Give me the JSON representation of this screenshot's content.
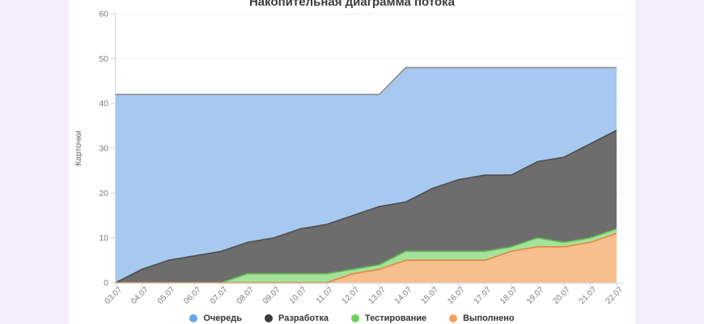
{
  "title": "Накопительная диаграмма потока",
  "y_axis": {
    "label": "Карточки",
    "ticks": [
      0,
      10,
      20,
      30,
      40,
      50,
      60
    ],
    "max": 60
  },
  "legend": {
    "items": [
      "Очередь",
      "Разработка",
      "Тестирование",
      "Выполнено"
    ]
  },
  "colors": {
    "background": "#f2ecfb",
    "panel": "#ffffff",
    "axis_line": "#c9d7ee",
    "grid_line": "#efefef",
    "tick_text": "#7a7a7a",
    "axis_title_text": "#666666",
    "title_text": "#3c3c3c",
    "series": {
      "Очередь": {
        "fill": "#a8c9ef",
        "stroke": "#8e8e8e",
        "dot": "#66a7e8"
      },
      "Разработка": {
        "fill": "#6d6d6d",
        "stroke": "#4f4f4f",
        "dot": "#3a3a3a"
      },
      "Тестирование": {
        "fill": "#a5e29a",
        "stroke": "#62b753",
        "dot": "#6ed05c"
      },
      "Выполнено": {
        "fill": "#f8bf8e",
        "stroke": "#e5853e",
        "dot": "#f6a257"
      }
    }
  },
  "chart_data": {
    "type": "area",
    "subtype": "stacked-cumulative-flow",
    "title": "Накопительная диаграмма потока",
    "xlabel": "",
    "ylabel": "Карточки",
    "ylim": [
      0,
      60
    ],
    "grid": "horizontal-only",
    "legend_position": "bottom",
    "categories": [
      "03.07",
      "04.07",
      "05.07",
      "06.07",
      "07.07",
      "08.07",
      "09.07",
      "10.07",
      "11.07",
      "12.07",
      "13.07",
      "14.07",
      "15.07",
      "16.07",
      "17.07",
      "18.07",
      "19.07",
      "20.07",
      "21.07",
      "22.07"
    ],
    "stacking_order_bottom_to_top": [
      "Выполнено",
      "Тестирование",
      "Разработка",
      "Очередь"
    ],
    "series": [
      {
        "name": "Выполнено",
        "values": [
          0,
          0,
          0,
          0,
          0,
          0,
          0,
          0,
          0,
          2,
          3,
          5,
          5,
          5,
          5,
          7,
          8,
          8,
          9,
          11
        ]
      },
      {
        "name": "Тестирование",
        "values": [
          0,
          0,
          0,
          0,
          0,
          2,
          2,
          2,
          2,
          1,
          1,
          2,
          2,
          2,
          2,
          1,
          2,
          1,
          1,
          1
        ]
      },
      {
        "name": "Разработка",
        "values": [
          0,
          3,
          5,
          6,
          7,
          7,
          8,
          10,
          11,
          12,
          13,
          11,
          14,
          16,
          17,
          16,
          17,
          19,
          21,
          22
        ]
      },
      {
        "name": "Очередь",
        "values": [
          42,
          39,
          37,
          36,
          35,
          33,
          32,
          30,
          29,
          27,
          25,
          30,
          27,
          25,
          24,
          24,
          21,
          20,
          17,
          14
        ]
      }
    ],
    "cumulative_tops": {
      "Выполнено": [
        0,
        0,
        0,
        0,
        0,
        0,
        0,
        0,
        0,
        2,
        3,
        5,
        5,
        5,
        5,
        7,
        8,
        8,
        9,
        11
      ],
      "Тестирование": [
        0,
        0,
        0,
        0,
        0,
        2,
        2,
        2,
        2,
        3,
        4,
        7,
        7,
        7,
        7,
        8,
        10,
        9,
        10,
        12
      ],
      "Разработка": [
        0,
        3,
        5,
        6,
        7,
        9,
        10,
        12,
        13,
        15,
        17,
        18,
        21,
        23,
        24,
        24,
        27,
        28,
        31,
        34
      ],
      "Очередь": [
        42,
        42,
        42,
        42,
        42,
        42,
        42,
        42,
        42,
        42,
        42,
        48,
        48,
        48,
        48,
        48,
        48,
        48,
        48,
        48
      ]
    }
  }
}
